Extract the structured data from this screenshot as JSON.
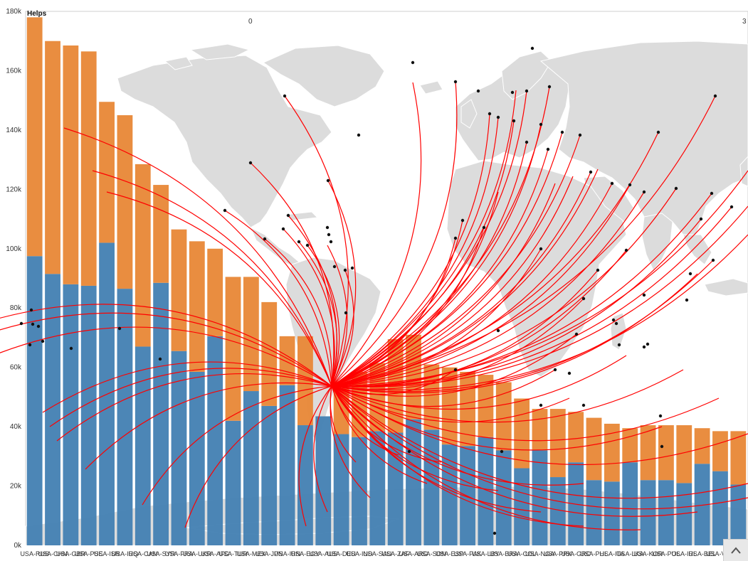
{
  "chart_data": {
    "type": "bar",
    "title": "Helps",
    "ylim": [
      0,
      180000
    ],
    "y_ticks": [
      "0k",
      "20k",
      "40k",
      "60k",
      "80k",
      "100k",
      "120k",
      "140k",
      "160k",
      "180k"
    ],
    "top_axis_ticks": [
      "0",
      "3"
    ],
    "categories": [
      "USA-RUS",
      "USA-CHN",
      "USA-GBR",
      "USA-PSE",
      "USA-ISR",
      "USA-IRQ",
      "USA-CAN",
      "USA-SYR",
      "USA-FRA",
      "USA-UKR",
      "USA-AFG",
      "USA-TUR",
      "USA-MEX",
      "USA-JPN",
      "USA-IRN",
      "USA-EGY",
      "USA-AUS",
      "USA-DEU",
      "USA-IND",
      "USA-SAU",
      "USA-ZAF",
      "USA-ARG",
      "USA-SDN",
      "USA-ESP",
      "USA-PAK",
      "USA-LBY",
      "USA-BRA",
      "USA-COL",
      "USA-NGA",
      "USA-PRK",
      "USA-GRC",
      "USA-PHL",
      "USA-ITA",
      "USA-LKA",
      "USA-KOR",
      "USA-POL",
      "USA-IRL",
      "USA-BEL",
      "USA-VEN",
      "USA-KEN"
    ],
    "series": [
      {
        "name": "",
        "color": "#4682b4",
        "values": [
          97500,
          91500,
          88000,
          87500,
          102000,
          86500,
          67000,
          88500,
          65500,
          58500,
          70500,
          42000,
          52000,
          47000,
          54000,
          40500,
          43500,
          37500,
          36500,
          38500,
          38000,
          42500,
          39000,
          34000,
          33500,
          36500,
          32000,
          26000,
          32000,
          23000,
          28000,
          22000,
          21500,
          28000,
          22000,
          22000,
          21000,
          27500,
          25000,
          20500
        ]
      },
      {
        "name": "",
        "color": "#e8893a",
        "values": [
          80500,
          78500,
          80500,
          79000,
          47500,
          58500,
          61500,
          33000,
          41000,
          44000,
          29500,
          48500,
          38500,
          35000,
          16500,
          30000,
          0,
          15500,
          22000,
          23000,
          31500,
          28500,
          22000,
          26000,
          25000,
          21000,
          23000,
          23500,
          14000,
          23000,
          17000,
          21000,
          19500,
          11500,
          18500,
          18500,
          19500,
          12000,
          13500,
          18000
        ]
      }
    ],
    "background_map": "world-map-light-gray",
    "flow_lines": {
      "color": "#ff0000",
      "origin": "South America"
    },
    "grid": false,
    "legend": "none"
  },
  "ui": {
    "scroll_icon": "chevron-up-icon"
  }
}
